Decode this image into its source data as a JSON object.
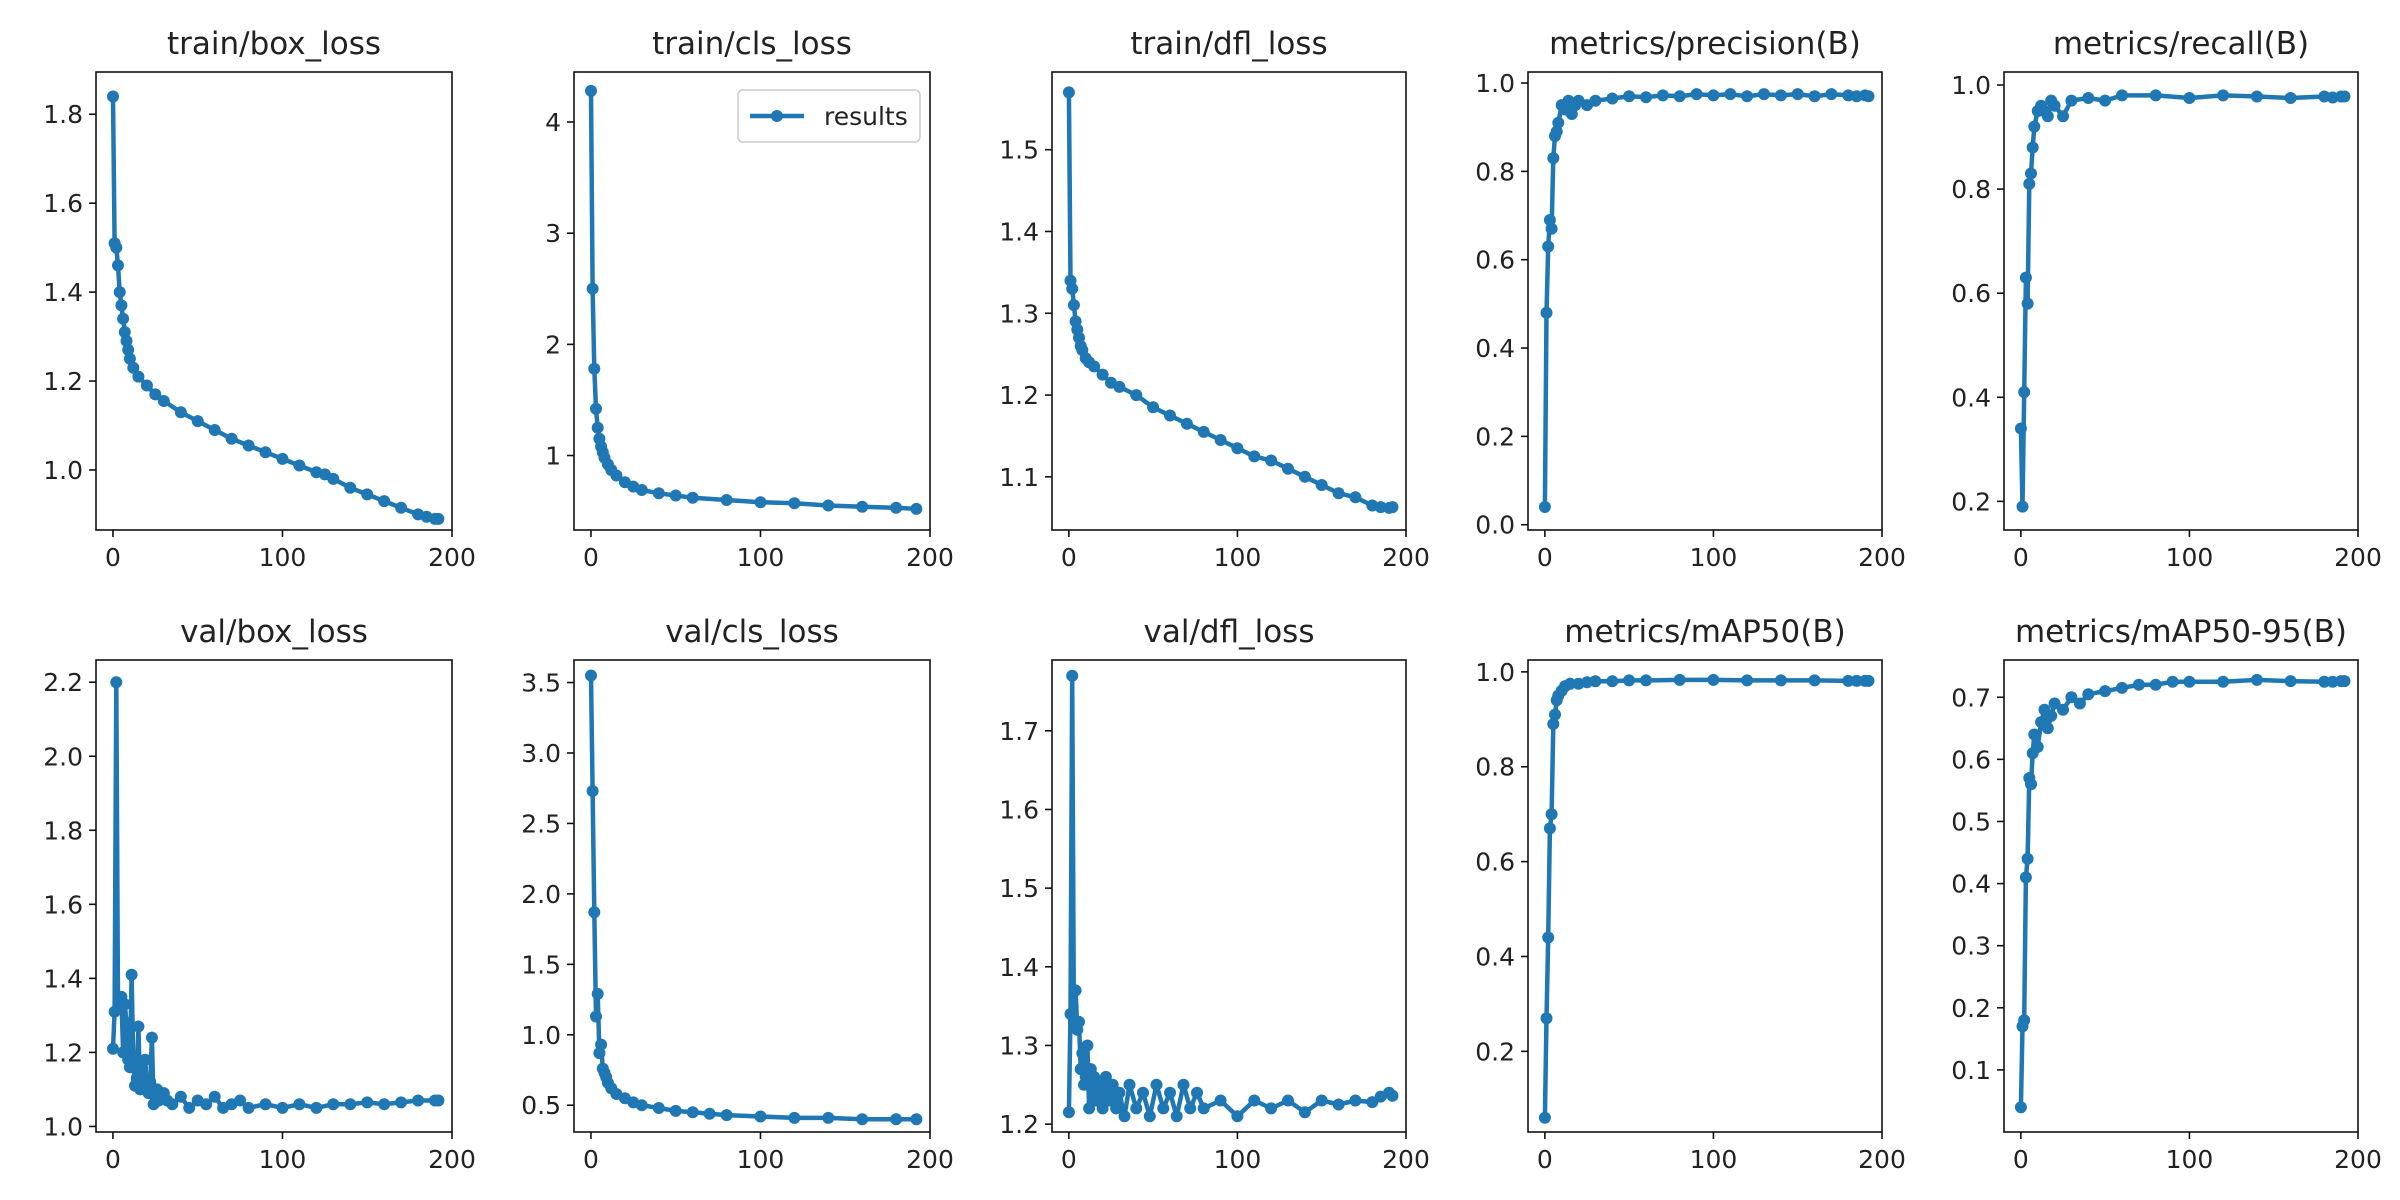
{
  "chart_data": [
    {
      "type": "line",
      "title": "train/box_loss",
      "xlim": [
        -10,
        200
      ],
      "xticks": [
        0,
        100,
        200
      ],
      "ylim": [
        0.865,
        1.895
      ],
      "yticks": [
        1.0,
        1.2,
        1.4,
        1.6,
        1.8
      ],
      "yprecision": 1,
      "series": [
        {
          "name": "results",
          "x": [
            0,
            1,
            2,
            3,
            4,
            5,
            6,
            7,
            8,
            9,
            10,
            12,
            15,
            20,
            25,
            30,
            40,
            50,
            60,
            70,
            80,
            90,
            100,
            110,
            120,
            125,
            130,
            140,
            150,
            160,
            170,
            180,
            185,
            190,
            192
          ],
          "y": [
            1.84,
            1.51,
            1.5,
            1.46,
            1.4,
            1.37,
            1.34,
            1.31,
            1.29,
            1.27,
            1.25,
            1.23,
            1.21,
            1.19,
            1.17,
            1.155,
            1.13,
            1.11,
            1.09,
            1.07,
            1.055,
            1.04,
            1.025,
            1.01,
            0.995,
            0.99,
            0.98,
            0.96,
            0.945,
            0.93,
            0.915,
            0.9,
            0.895,
            0.89,
            0.89
          ]
        }
      ]
    },
    {
      "type": "line",
      "title": "train/cls_loss",
      "xlim": [
        -10,
        200
      ],
      "xticks": [
        0,
        100,
        200
      ],
      "ylim": [
        0.33,
        4.45
      ],
      "yticks": [
        1,
        2,
        3,
        4
      ],
      "yprecision": 0,
      "legend": {
        "label": "results",
        "placement": "upper right"
      },
      "series": [
        {
          "name": "results",
          "x": [
            0,
            1,
            2,
            3,
            4,
            5,
            6,
            7,
            8,
            10,
            12,
            15,
            20,
            25,
            30,
            40,
            50,
            60,
            80,
            100,
            120,
            140,
            160,
            180,
            192
          ],
          "y": [
            4.28,
            2.5,
            1.78,
            1.42,
            1.25,
            1.15,
            1.08,
            1.03,
            0.98,
            0.92,
            0.87,
            0.82,
            0.76,
            0.72,
            0.69,
            0.66,
            0.64,
            0.62,
            0.6,
            0.58,
            0.57,
            0.55,
            0.54,
            0.53,
            0.52
          ]
        }
      ]
    },
    {
      "type": "line",
      "title": "train/dfl_loss",
      "xlim": [
        -10,
        200
      ],
      "xticks": [
        0,
        100,
        200
      ],
      "ylim": [
        1.035,
        1.595
      ],
      "yticks": [
        1.1,
        1.2,
        1.3,
        1.4,
        1.5
      ],
      "yprecision": 1,
      "series": [
        {
          "name": "results",
          "x": [
            0,
            1,
            2,
            3,
            4,
            5,
            6,
            7,
            8,
            10,
            12,
            15,
            20,
            25,
            30,
            40,
            50,
            60,
            70,
            80,
            90,
            100,
            110,
            120,
            130,
            140,
            150,
            160,
            170,
            180,
            185,
            190,
            192
          ],
          "y": [
            1.57,
            1.34,
            1.33,
            1.31,
            1.29,
            1.28,
            1.27,
            1.26,
            1.255,
            1.245,
            1.24,
            1.235,
            1.225,
            1.215,
            1.21,
            1.2,
            1.185,
            1.175,
            1.165,
            1.155,
            1.145,
            1.135,
            1.125,
            1.12,
            1.11,
            1.1,
            1.09,
            1.08,
            1.075,
            1.065,
            1.063,
            1.062,
            1.063
          ]
        }
      ]
    },
    {
      "type": "line",
      "title": "metrics/precision(B)",
      "xlim": [
        -10,
        200
      ],
      "xticks": [
        0,
        100,
        200
      ],
      "ylim": [
        -0.012,
        1.025
      ],
      "yticks": [
        0.0,
        0.2,
        0.4,
        0.6,
        0.8,
        1.0
      ],
      "yprecision": 1,
      "series": [
        {
          "name": "results",
          "x": [
            0,
            1,
            2,
            3,
            4,
            5,
            6,
            7,
            8,
            10,
            12,
            14,
            16,
            18,
            20,
            25,
            30,
            40,
            50,
            60,
            70,
            80,
            90,
            100,
            110,
            120,
            130,
            140,
            150,
            160,
            170,
            180,
            185,
            190,
            192
          ],
          "y": [
            0.04,
            0.48,
            0.63,
            0.69,
            0.67,
            0.83,
            0.88,
            0.89,
            0.91,
            0.95,
            0.94,
            0.96,
            0.93,
            0.95,
            0.96,
            0.95,
            0.96,
            0.965,
            0.97,
            0.968,
            0.972,
            0.97,
            0.975,
            0.972,
            0.975,
            0.97,
            0.975,
            0.972,
            0.975,
            0.97,
            0.975,
            0.972,
            0.97,
            0.972,
            0.97
          ]
        }
      ]
    },
    {
      "type": "line",
      "title": "metrics/recall(B)",
      "xlim": [
        -10,
        200
      ],
      "xticks": [
        0,
        100,
        200
      ],
      "ylim": [
        0.145,
        1.025
      ],
      "yticks": [
        0.2,
        0.4,
        0.6,
        0.8,
        1.0
      ],
      "yprecision": 1,
      "series": [
        {
          "name": "results",
          "x": [
            0,
            1,
            2,
            3,
            4,
            5,
            6,
            7,
            8,
            10,
            12,
            14,
            16,
            18,
            20,
            25,
            30,
            40,
            50,
            60,
            80,
            100,
            120,
            140,
            160,
            180,
            185,
            190,
            192
          ],
          "y": [
            0.34,
            0.19,
            0.41,
            0.63,
            0.58,
            0.81,
            0.83,
            0.88,
            0.92,
            0.95,
            0.96,
            0.95,
            0.94,
            0.97,
            0.96,
            0.94,
            0.97,
            0.975,
            0.97,
            0.98,
            0.98,
            0.975,
            0.98,
            0.978,
            0.975,
            0.978,
            0.976,
            0.978,
            0.978
          ]
        }
      ]
    },
    {
      "type": "line",
      "title": "val/box_loss",
      "xlim": [
        -10,
        200
      ],
      "xticks": [
        0,
        100,
        200
      ],
      "ylim": [
        0.985,
        2.26
      ],
      "yticks": [
        1.0,
        1.2,
        1.4,
        1.6,
        1.8,
        2.0,
        2.2
      ],
      "yprecision": 1,
      "series": [
        {
          "name": "results",
          "x": [
            0,
            1,
            2,
            3,
            4,
            5,
            6,
            7,
            8,
            9,
            10,
            11,
            12,
            13,
            14,
            15,
            16,
            17,
            18,
            19,
            20,
            21,
            22,
            23,
            24,
            25,
            26,
            27,
            28,
            30,
            32,
            35,
            40,
            45,
            50,
            55,
            60,
            65,
            70,
            75,
            80,
            90,
            100,
            110,
            120,
            130,
            140,
            150,
            160,
            170,
            180,
            190,
            192
          ],
          "y": [
            1.21,
            1.31,
            2.2,
            1.32,
            1.34,
            1.35,
            1.2,
            1.33,
            1.28,
            1.18,
            1.16,
            1.41,
            1.17,
            1.11,
            1.13,
            1.27,
            1.1,
            1.16,
            1.12,
            1.18,
            1.1,
            1.09,
            1.12,
            1.24,
            1.06,
            1.08,
            1.1,
            1.07,
            1.08,
            1.09,
            1.07,
            1.06,
            1.08,
            1.05,
            1.07,
            1.06,
            1.08,
            1.05,
            1.06,
            1.07,
            1.05,
            1.06,
            1.05,
            1.06,
            1.05,
            1.06,
            1.06,
            1.065,
            1.06,
            1.065,
            1.07,
            1.07,
            1.07
          ]
        }
      ]
    },
    {
      "type": "line",
      "title": "val/cls_loss",
      "xlim": [
        -10,
        200
      ],
      "xticks": [
        0,
        100,
        200
      ],
      "ylim": [
        0.31,
        3.66
      ],
      "yticks": [
        0.5,
        1.0,
        1.5,
        2.0,
        2.5,
        3.0,
        3.5
      ],
      "yprecision": 1,
      "series": [
        {
          "name": "results",
          "x": [
            0,
            1,
            2,
            3,
            4,
            5,
            6,
            7,
            8,
            9,
            10,
            12,
            15,
            20,
            25,
            30,
            40,
            50,
            60,
            70,
            80,
            100,
            120,
            140,
            160,
            180,
            192
          ],
          "y": [
            3.55,
            2.73,
            1.87,
            1.13,
            1.29,
            0.87,
            0.93,
            0.76,
            0.73,
            0.7,
            0.66,
            0.62,
            0.58,
            0.55,
            0.52,
            0.5,
            0.48,
            0.46,
            0.45,
            0.44,
            0.43,
            0.42,
            0.41,
            0.41,
            0.4,
            0.4,
            0.4
          ]
        }
      ]
    },
    {
      "type": "line",
      "title": "val/dfl_loss",
      "xlim": [
        -10,
        200
      ],
      "xticks": [
        0,
        100,
        200
      ],
      "ylim": [
        1.19,
        1.79
      ],
      "yticks": [
        1.2,
        1.3,
        1.4,
        1.5,
        1.6,
        1.7
      ],
      "yprecision": 1,
      "series": [
        {
          "name": "results",
          "x": [
            0,
            1,
            2,
            3,
            4,
            5,
            6,
            7,
            8,
            9,
            10,
            11,
            12,
            13,
            14,
            15,
            16,
            18,
            20,
            22,
            24,
            26,
            28,
            30,
            33,
            36,
            40,
            44,
            48,
            52,
            56,
            60,
            64,
            68,
            72,
            76,
            80,
            90,
            100,
            110,
            120,
            130,
            140,
            150,
            160,
            170,
            180,
            185,
            190,
            192
          ],
          "y": [
            1.215,
            1.34,
            1.77,
            1.33,
            1.37,
            1.32,
            1.33,
            1.27,
            1.29,
            1.25,
            1.26,
            1.3,
            1.22,
            1.27,
            1.24,
            1.26,
            1.23,
            1.25,
            1.22,
            1.26,
            1.23,
            1.25,
            1.22,
            1.24,
            1.21,
            1.25,
            1.22,
            1.24,
            1.21,
            1.25,
            1.22,
            1.24,
            1.21,
            1.25,
            1.22,
            1.24,
            1.22,
            1.23,
            1.21,
            1.23,
            1.22,
            1.23,
            1.215,
            1.23,
            1.225,
            1.23,
            1.228,
            1.235,
            1.24,
            1.236
          ]
        }
      ]
    },
    {
      "type": "line",
      "title": "metrics/mAP50(B)",
      "xlim": [
        -10,
        200
      ],
      "xticks": [
        0,
        100,
        200
      ],
      "ylim": [
        0.03,
        1.025
      ],
      "yticks": [
        0.2,
        0.4,
        0.6,
        0.8,
        1.0
      ],
      "yprecision": 1,
      "series": [
        {
          "name": "results",
          "x": [
            0,
            1,
            2,
            3,
            4,
            5,
            6,
            7,
            8,
            10,
            12,
            15,
            20,
            25,
            30,
            40,
            50,
            60,
            80,
            100,
            120,
            140,
            160,
            180,
            185,
            190,
            192
          ],
          "y": [
            0.06,
            0.27,
            0.44,
            0.67,
            0.7,
            0.89,
            0.91,
            0.94,
            0.95,
            0.96,
            0.97,
            0.975,
            0.975,
            0.978,
            0.98,
            0.98,
            0.982,
            0.982,
            0.983,
            0.983,
            0.982,
            0.982,
            0.982,
            0.981,
            0.981,
            0.981,
            0.981
          ]
        }
      ]
    },
    {
      "type": "line",
      "title": "metrics/mAP50-95(B)",
      "xlim": [
        -10,
        200
      ],
      "xticks": [
        0,
        100,
        200
      ],
      "ylim": [
        0.0,
        0.76
      ],
      "yticks": [
        0.1,
        0.2,
        0.3,
        0.4,
        0.5,
        0.6,
        0.7
      ],
      "yprecision": 1,
      "series": [
        {
          "name": "results",
          "x": [
            0,
            1,
            2,
            3,
            4,
            5,
            6,
            7,
            8,
            10,
            12,
            14,
            16,
            18,
            20,
            25,
            30,
            35,
            40,
            50,
            60,
            70,
            80,
            90,
            100,
            120,
            140,
            160,
            180,
            185,
            190,
            192
          ],
          "y": [
            0.04,
            0.17,
            0.18,
            0.41,
            0.44,
            0.57,
            0.56,
            0.61,
            0.64,
            0.62,
            0.66,
            0.68,
            0.65,
            0.67,
            0.69,
            0.68,
            0.7,
            0.69,
            0.705,
            0.71,
            0.715,
            0.72,
            0.72,
            0.725,
            0.725,
            0.725,
            0.728,
            0.726,
            0.725,
            0.725,
            0.726,
            0.726
          ]
        }
      ]
    }
  ],
  "colors": {
    "line": "#1f77b4",
    "axes": "#111111",
    "background": "#ffffff"
  }
}
